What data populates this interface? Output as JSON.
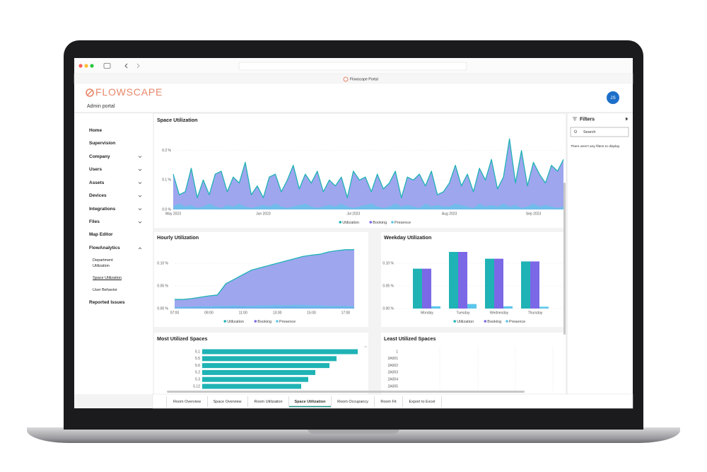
{
  "browser": {
    "tab_title": "Flowscape Portal"
  },
  "header": {
    "logo": "FLOWSCAPE",
    "subtitle": "Admin portal",
    "avatar": "JS"
  },
  "nav": [
    "Home",
    "Supervision",
    "Company",
    "Users",
    "Assets",
    "Devices",
    "Integrations",
    "Files",
    "Map Editor",
    "FlowAnalytics",
    "Department Utilization",
    "Space Utilization",
    "User Behavior",
    "Reported Issues"
  ],
  "filters": {
    "title": "Filters",
    "search_placeholder": "Search",
    "empty_message": "There aren't any filters to display."
  },
  "tabs": [
    "Room Overview",
    "Space Overview",
    "Room Utilization",
    "Space Utilization",
    "Room Occupancy",
    "Room Fit",
    "Export to Excel"
  ],
  "chart_data": [
    {
      "type": "area",
      "title": "Space Utilization",
      "categories": [
        "May 2023",
        null,
        null,
        null,
        null,
        null,
        null,
        null,
        null,
        null,
        null,
        null,
        null,
        null,
        null,
        "Jun 2023",
        null,
        null,
        null,
        null,
        null,
        null,
        null,
        null,
        null,
        null,
        null,
        null,
        null,
        null,
        "Jul 2023",
        null,
        null,
        null,
        null,
        null,
        null,
        null,
        null,
        null,
        null,
        null,
        null,
        null,
        null,
        null,
        "Aug 2023",
        null,
        null,
        null,
        null,
        null,
        null,
        null,
        null,
        null,
        null,
        null,
        null,
        null,
        "Sep 2023",
        null,
        null,
        null,
        null,
        null
      ],
      "series": [
        {
          "name": "Utilization",
          "color": "#1fb3b5",
          "fill": "#9ea6ee",
          "values": [
            0.12,
            0.05,
            0.06,
            0.14,
            0.04,
            0.1,
            0.05,
            0.12,
            0.13,
            0.06,
            0.11,
            0.09,
            0.16,
            0.05,
            0.08,
            0.04,
            0.11,
            0.12,
            0.06,
            0.1,
            0.15,
            0.07,
            0.12,
            0.09,
            0.13,
            0.06,
            0.1,
            0.08,
            0.11,
            0.04,
            0.13,
            0.1,
            0.11,
            0.06,
            0.12,
            0.07,
            0.09,
            0.13,
            0.04,
            0.11,
            0.1,
            0.12,
            0.08,
            0.13,
            0.05,
            0.06,
            0.09,
            0.15,
            0.08,
            0.12,
            0.06,
            0.14,
            0.1,
            0.17,
            0.07,
            0.11,
            0.24,
            0.09,
            0.2,
            0.08,
            0.16,
            0.12,
            0.09,
            0.15,
            0.13,
            0.17
          ]
        },
        {
          "name": "Booking",
          "color": "#7b68e6",
          "values": [
            0,
            0,
            0,
            0,
            0,
            0,
            0,
            0,
            0,
            0,
            0,
            0,
            0,
            0,
            0,
            0,
            0,
            0,
            0,
            0,
            0,
            0,
            0,
            0,
            0,
            0,
            0,
            0,
            0,
            0,
            0,
            0,
            0,
            0,
            0,
            0,
            0,
            0,
            0,
            0,
            0,
            0,
            0,
            0,
            0,
            0,
            0,
            0,
            0,
            0,
            0,
            0,
            0,
            0,
            0,
            0,
            0,
            0,
            0,
            0,
            0,
            0,
            0,
            0,
            0,
            0
          ]
        },
        {
          "name": "Presence",
          "color": "#5cc6ea",
          "values": [
            0.01,
            0.02,
            0.01,
            0.015,
            0.005,
            0.01,
            0.02,
            0.01,
            0.005,
            0.015,
            0.01,
            0.02,
            0.01,
            0.005,
            0.01,
            0.015,
            0.01,
            0.02,
            0.01,
            0.005,
            0.01,
            0.015,
            0.02,
            0.01,
            0.005,
            0.01,
            0.015,
            0.01,
            0.02,
            0.01,
            0.005,
            0.01,
            0.015,
            0.02,
            0.01,
            0.005,
            0.01,
            0.02,
            0.01,
            0.015,
            0.01,
            0.005,
            0.02,
            0.01,
            0.015,
            0.01,
            0.01,
            0.02,
            0.015,
            0.01,
            0.005,
            0.02,
            0.01,
            0.015,
            0.01,
            0.02,
            0.01,
            0.015,
            0.005,
            0.01,
            0.02,
            0.01,
            0.015,
            0.01,
            0.005,
            0.01
          ]
        }
      ],
      "ylim": [
        0,
        0.25
      ],
      "yticks": [
        {
          "value": 0,
          "label": "0.0 %"
        },
        {
          "value": 0.1,
          "label": "0.1 %"
        },
        {
          "value": 0.2,
          "label": "0.2 %"
        }
      ],
      "grid": true
    },
    {
      "type": "area",
      "title": "Hourly Utilization",
      "categories": [
        "07:00",
        null,
        null,
        null,
        "09:00",
        null,
        null,
        null,
        "11:00",
        null,
        null,
        null,
        "13:00",
        null,
        null,
        null,
        "15:00",
        null,
        null,
        null,
        "17:00",
        null
      ],
      "series": [
        {
          "name": "Utilization",
          "color": "#1fb3b5",
          "fill": "#9ea6ee",
          "values": [
            0.02,
            0.02,
            0.022,
            0.025,
            0.028,
            0.03,
            0.055,
            0.065,
            0.075,
            0.085,
            0.09,
            0.095,
            0.1,
            0.105,
            0.11,
            0.115,
            0.118,
            0.12,
            0.125,
            0.128,
            0.13,
            0.13
          ]
        },
        {
          "name": "Booking",
          "color": "#7b68e6",
          "values": [
            0.002,
            0.002,
            0.003,
            0.003,
            0.003,
            0.003,
            0.004,
            0.004,
            0.004,
            0.003,
            0.003,
            0.003,
            0.004,
            0.004,
            0.004,
            0.003,
            0.003,
            0.003,
            0.003,
            0.003,
            0.003,
            0.003
          ]
        },
        {
          "name": "Presence",
          "color": "#5cc6ea",
          "values": [
            0.003,
            0.004,
            0.004,
            0.005,
            0.005,
            0.006,
            0.006,
            0.007,
            0.006,
            0.006,
            0.007,
            0.007,
            0.008,
            0.007,
            0.008,
            0.008,
            0.007,
            0.007,
            0.006,
            0.006,
            0.006,
            0.005
          ]
        }
      ],
      "ylim": [
        0,
        0.14
      ],
      "yticks": [
        {
          "value": 0,
          "label": "0.00 %"
        },
        {
          "value": 0.05,
          "label": "0.05 %"
        },
        {
          "value": 0.1,
          "label": "0.10 %"
        }
      ],
      "grid": true
    },
    {
      "type": "bar",
      "title": "Weekday Utilization",
      "categories": [
        "Monday",
        "Tuesday",
        "Wednesday",
        "Thursday"
      ],
      "series": [
        {
          "name": "Utilization",
          "color": "#1fb3b5",
          "values": [
            0.088,
            0.125,
            0.11,
            0.104
          ]
        },
        {
          "name": "Booking",
          "color": "#7b68e6",
          "values": [
            0.088,
            0.125,
            0.11,
            0.104
          ]
        },
        {
          "name": "Presence",
          "color": "#5cc6ea",
          "values": [
            0.005,
            0.01,
            0.005,
            0.004
          ]
        }
      ],
      "ylim": [
        0,
        0.14
      ],
      "yticks": [
        {
          "value": 0,
          "label": "0.00 %"
        },
        {
          "value": 0.05,
          "label": "0.05 %"
        },
        {
          "value": 0.1,
          "label": "0.10 %"
        }
      ],
      "grid": true
    },
    {
      "type": "barh",
      "title": "Most Utilized Spaces",
      "categories": [
        "5.1",
        "5.5",
        "5.6",
        "5.2",
        "5.3",
        "5.12"
      ],
      "values": [
        0.22,
        0.19,
        0.18,
        0.16,
        0.15,
        0.14
      ],
      "color": "#1fb3b5"
    },
    {
      "type": "barh",
      "title": "Least Utilized Spaces",
      "categories": [
        "1",
        "2A001",
        "2A002",
        "2A003",
        "2A004",
        "2A005"
      ],
      "values": [
        0,
        0,
        0,
        0,
        0,
        0
      ],
      "color": "#1fb3b5"
    }
  ]
}
